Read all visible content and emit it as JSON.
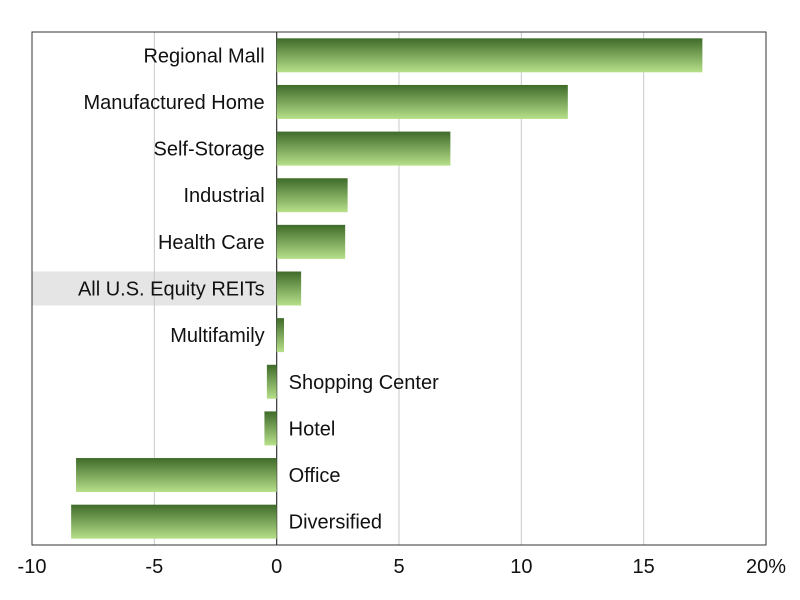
{
  "chart_data": {
    "type": "bar",
    "orientation": "horizontal",
    "categories": [
      "Regional Mall",
      "Manufactured Home",
      "Self-Storage",
      "Industrial",
      "Health Care",
      "All U.S. Equity REITs",
      "Multifamily",
      "Shopping Center",
      "Hotel",
      "Office",
      "Diversified"
    ],
    "values": [
      17.4,
      11.9,
      7.1,
      2.9,
      2.8,
      1.0,
      0.3,
      -0.4,
      -0.5,
      -8.2,
      -8.4
    ],
    "highlighted_category": "All U.S. Equity REITs",
    "xlim": [
      -10,
      20
    ],
    "xticks": [
      -10,
      -5,
      0,
      5,
      10,
      15,
      20
    ],
    "xtick_labels": [
      "-10",
      "-5",
      "0",
      "5",
      "10",
      "15",
      "20%"
    ],
    "grid": "vertical",
    "title": "",
    "xlabel": "",
    "ylabel": "",
    "colors": {
      "bar_dark": "#3f6b2a",
      "bar_light": "#b7e08a",
      "highlight_band": "#e5e5e5",
      "grid": "#c8c8c8",
      "axis": "#333333"
    }
  }
}
